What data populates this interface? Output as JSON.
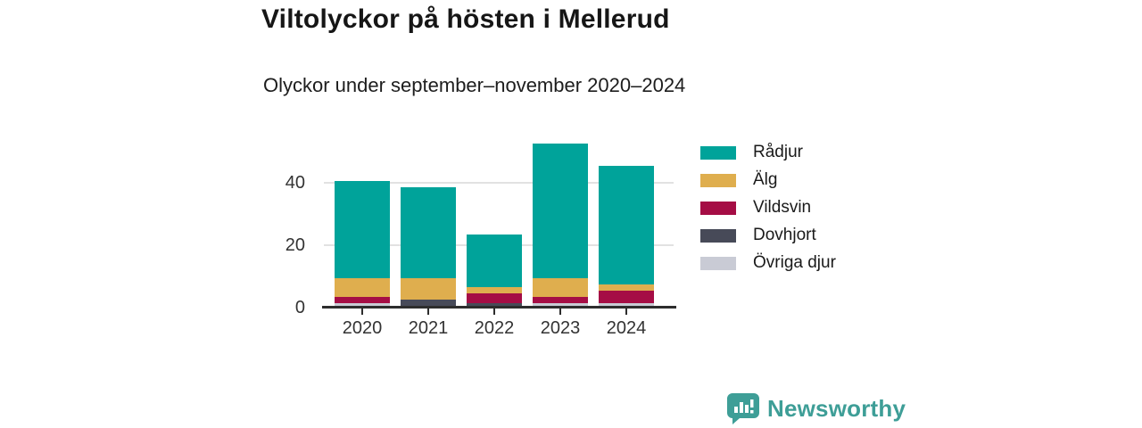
{
  "header": {
    "title": "Viltolyckor på hösten i Mellerud",
    "subtitle": "Olyckor under september–november 2020–2024"
  },
  "chart_data": {
    "type": "bar",
    "stacked": true,
    "title": "Viltolyckor på hösten i Mellerud",
    "subtitle": "Olyckor under september–november 2020–2024",
    "categories": [
      "2020",
      "2021",
      "2022",
      "2023",
      "2024"
    ],
    "series": [
      {
        "name": "Rådjur",
        "color": "#00a39a",
        "values": [
          31,
          29,
          17,
          43,
          38
        ]
      },
      {
        "name": "Älg",
        "color": "#dfae4e",
        "values": [
          6,
          7,
          2,
          6,
          2
        ]
      },
      {
        "name": "Vildsvin",
        "color": "#a50d45",
        "values": [
          2,
          0,
          3,
          2,
          4
        ]
      },
      {
        "name": "Dovhjort",
        "color": "#474a58",
        "values": [
          0,
          2,
          1,
          0,
          0
        ]
      },
      {
        "name": "Övriga djur",
        "color": "#c9cbd5",
        "values": [
          1,
          0,
          0,
          1,
          1
        ]
      }
    ],
    "totals": [
      40,
      38,
      23,
      52,
      45
    ],
    "xlabel": "",
    "ylabel": "",
    "yticks": [
      0,
      20,
      40
    ],
    "ylim": [
      0,
      56
    ],
    "grid": true,
    "legend_position": "right"
  },
  "footer": {
    "brand": "Newsworthy",
    "brand_color": "#3e9e97"
  }
}
